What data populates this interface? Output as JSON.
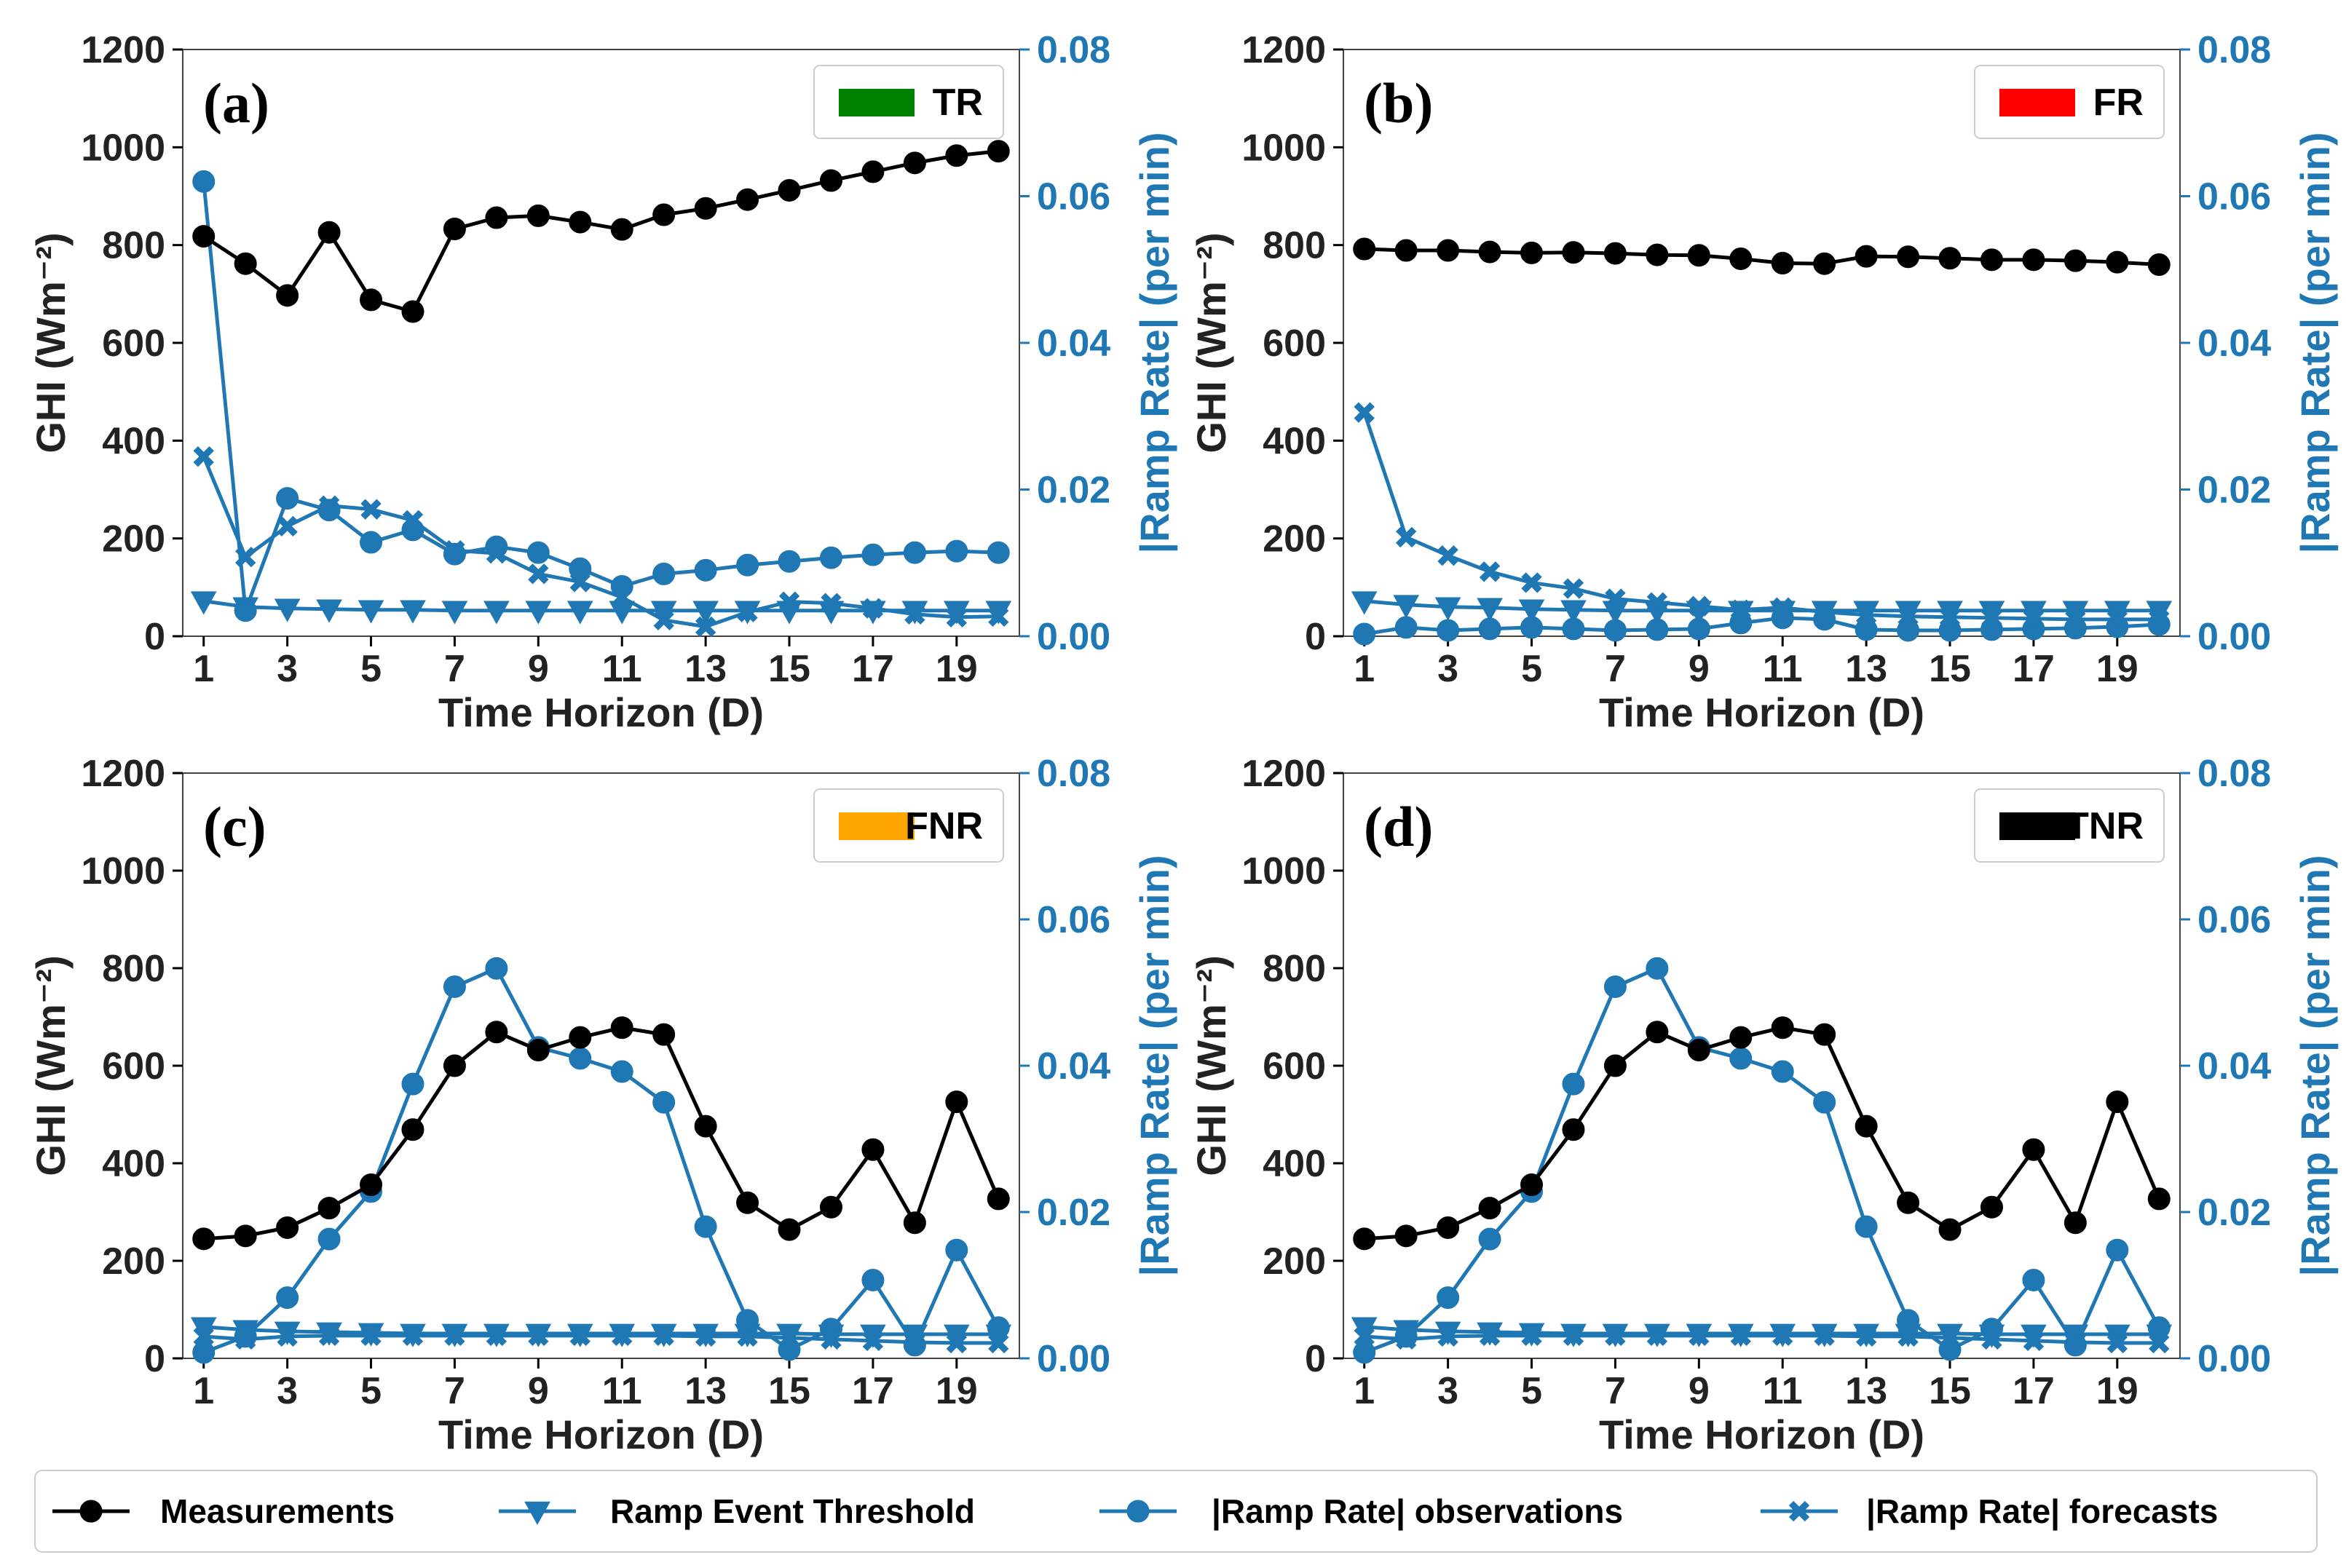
{
  "figure": {
    "legend": [
      {
        "label": "Measurements",
        "color": "#000000",
        "marker": "circle"
      },
      {
        "label": "Ramp Event Threshold",
        "color": "#1f77b4",
        "marker": "triangle-down"
      },
      {
        "label": "|Ramp Rate| observations",
        "color": "#1f77b4",
        "marker": "circle"
      },
      {
        "label": "|Ramp Rate| forecasts",
        "color": "#1f77b4",
        "marker": "x"
      }
    ]
  },
  "chart_data": [
    {
      "type": "line",
      "panel_label": "(a)",
      "category_label": "TR",
      "category_color": "#008000",
      "xlabel": "Time Horizon (D)",
      "ylabel": "GHI (Wm⁻²)",
      "y2label": "|Ramp Rate| (per min)",
      "xlim": [
        0.5,
        20.5
      ],
      "ylim": [
        0,
        1200
      ],
      "y2lim": [
        0,
        0.08
      ],
      "xticks": [
        1,
        3,
        5,
        7,
        9,
        11,
        13,
        15,
        17,
        19
      ],
      "yticks": [
        0,
        200,
        400,
        600,
        800,
        1000,
        1200
      ],
      "y2ticks": [
        "0.00",
        "0.02",
        "0.04",
        "0.06",
        "0.08"
      ],
      "x": [
        1,
        2,
        3,
        4,
        5,
        6,
        7,
        8,
        9,
        10,
        11,
        12,
        13,
        14,
        15,
        16,
        17,
        18,
        19,
        20
      ],
      "series": [
        {
          "name": "Measurements",
          "axis": "left",
          "values": [
            818,
            762,
            697,
            826,
            688,
            664,
            833,
            856,
            860,
            847,
            832,
            862,
            875,
            893,
            912,
            932,
            950,
            968,
            983,
            992
          ]
        },
        {
          "name": "Ramp Event Threshold",
          "axis": "right",
          "values": [
            0.0048,
            0.004,
            0.0038,
            0.0037,
            0.0036,
            0.0036,
            0.0035,
            0.0035,
            0.0035,
            0.0035,
            0.0035,
            0.0035,
            0.0035,
            0.0035,
            0.0035,
            0.0035,
            0.0035,
            0.0035,
            0.0035,
            0.0035
          ]
        },
        {
          "name": "|Ramp Rate| observations",
          "axis": "right",
          "values": [
            0.062,
            0.0035,
            0.0188,
            0.0172,
            0.0128,
            0.0145,
            0.0112,
            0.0122,
            0.0114,
            0.0092,
            0.0068,
            0.0085,
            0.009,
            0.0097,
            0.0102,
            0.0107,
            0.0111,
            0.0114,
            0.0116,
            0.0114
          ]
        },
        {
          "name": "|Ramp Rate| forecasts",
          "axis": "right",
          "values": [
            0.0245,
            0.0108,
            0.015,
            0.0178,
            0.0173,
            0.0158,
            0.0117,
            0.0113,
            0.0085,
            0.0074,
            0.0053,
            0.0022,
            0.0013,
            0.0033,
            0.0047,
            0.0045,
            0.0038,
            0.003,
            0.0026,
            0.0027
          ]
        }
      ]
    },
    {
      "type": "line",
      "panel_label": "(b)",
      "category_label": "FR",
      "category_color": "#ff0000",
      "xlabel": "Time Horizon (D)",
      "ylabel": "GHI (Wm⁻²)",
      "y2label": "|Ramp Rate| (per min)",
      "xlim": [
        0.5,
        20.5
      ],
      "ylim": [
        0,
        1200
      ],
      "y2lim": [
        0,
        0.08
      ],
      "xticks": [
        1,
        3,
        5,
        7,
        9,
        11,
        13,
        15,
        17,
        19
      ],
      "yticks": [
        0,
        200,
        400,
        600,
        800,
        1000,
        1200
      ],
      "y2ticks": [
        "0.00",
        "0.02",
        "0.04",
        "0.06",
        "0.08"
      ],
      "x": [
        1,
        2,
        3,
        4,
        5,
        6,
        7,
        8,
        9,
        10,
        11,
        12,
        13,
        14,
        15,
        16,
        17,
        18,
        19,
        20
      ],
      "series": [
        {
          "name": "Measurements",
          "axis": "left",
          "values": [
            792,
            789,
            789,
            786,
            784,
            785,
            783,
            780,
            779,
            772,
            763,
            762,
            777,
            776,
            773,
            770,
            770,
            768,
            765,
            760
          ]
        },
        {
          "name": "Ramp Event Threshold",
          "axis": "right",
          "values": [
            0.0048,
            0.0043,
            0.004,
            0.0039,
            0.0037,
            0.0036,
            0.0035,
            0.0035,
            0.0035,
            0.0035,
            0.0035,
            0.0035,
            0.0035,
            0.0035,
            0.0035,
            0.0035,
            0.0035,
            0.0035,
            0.0035,
            0.0035
          ]
        },
        {
          "name": "|Ramp Rate| observations",
          "axis": "right",
          "values": [
            0.0003,
            0.0012,
            0.0008,
            0.001,
            0.0012,
            0.001,
            0.0008,
            0.0009,
            0.001,
            0.0018,
            0.0025,
            0.0023,
            0.0009,
            0.0008,
            0.0008,
            0.0009,
            0.001,
            0.0011,
            0.0013,
            0.0016
          ]
        },
        {
          "name": "|Ramp Rate| forecasts",
          "axis": "right",
          "values": [
            0.0305,
            0.0135,
            0.011,
            0.0088,
            0.0073,
            0.0065,
            0.0051,
            0.0046,
            0.0041,
            0.0036,
            0.0039,
            0.0033,
            0.0029,
            0.0027,
            0.0026,
            0.0025,
            0.0024,
            0.0023,
            0.0023,
            0.0023
          ]
        }
      ]
    },
    {
      "type": "line",
      "panel_label": "(c)",
      "category_label": "FNR",
      "category_color": "#ffa500",
      "xlabel": "Time Horizon (D)",
      "ylabel": "GHI (Wm⁻²)",
      "y2label": "|Ramp Rate| (per min)",
      "xlim": [
        0.5,
        20.5
      ],
      "ylim": [
        0,
        1200
      ],
      "y2lim": [
        0,
        0.08
      ],
      "xticks": [
        1,
        3,
        5,
        7,
        9,
        11,
        13,
        15,
        17,
        19
      ],
      "yticks": [
        0,
        200,
        400,
        600,
        800,
        1000,
        1200
      ],
      "y2ticks": [
        "0.00",
        "0.02",
        "0.04",
        "0.06",
        "0.08"
      ],
      "x": [
        1,
        2,
        3,
        4,
        5,
        6,
        7,
        8,
        9,
        10,
        11,
        12,
        13,
        14,
        15,
        16,
        17,
        18,
        19,
        20
      ],
      "series": [
        {
          "name": "Measurements",
          "axis": "left",
          "values": [
            245,
            251,
            268,
            308,
            356,
            469,
            600,
            669,
            632,
            658,
            678,
            664,
            476,
            319,
            264,
            310,
            428,
            278,
            526,
            327
          ]
        },
        {
          "name": "Ramp Event Threshold",
          "axis": "right",
          "values": [
            0.0043,
            0.0039,
            0.0037,
            0.0036,
            0.0035,
            0.0034,
            0.0034,
            0.0034,
            0.0034,
            0.0034,
            0.0034,
            0.0034,
            0.0034,
            0.0034,
            0.0034,
            0.0033,
            0.0033,
            0.0033,
            0.0033,
            0.0033
          ]
        },
        {
          "name": "|Ramp Rate| observations",
          "axis": "right",
          "values": [
            0.0008,
            0.003,
            0.0083,
            0.0163,
            0.0228,
            0.0375,
            0.0508,
            0.0533,
            0.0425,
            0.041,
            0.0392,
            0.035,
            0.018,
            0.0052,
            0.0012,
            0.004,
            0.0107,
            0.0018,
            0.0148,
            0.0042
          ]
        },
        {
          "name": "|Ramp Rate| forecasts",
          "axis": "right",
          "values": [
            0.003,
            0.0026,
            0.003,
            0.0031,
            0.0031,
            0.0031,
            0.0031,
            0.0031,
            0.0031,
            0.0031,
            0.0031,
            0.0031,
            0.003,
            0.003,
            0.0028,
            0.0026,
            0.0024,
            0.0022,
            0.0021,
            0.0021
          ]
        }
      ]
    },
    {
      "type": "line",
      "panel_label": "(d)",
      "category_label": "TNR",
      "category_color": "#000000",
      "xlabel": "Time Horizon (D)",
      "ylabel": "GHI (Wm⁻²)",
      "y2label": "|Ramp Rate| (per min)",
      "xlim": [
        0.5,
        20.5
      ],
      "ylim": [
        0,
        1200
      ],
      "y2lim": [
        0,
        0.08
      ],
      "xticks": [
        1,
        3,
        5,
        7,
        9,
        11,
        13,
        15,
        17,
        19
      ],
      "yticks": [
        0,
        200,
        400,
        600,
        800,
        1000,
        1200
      ],
      "y2ticks": [
        "0.00",
        "0.02",
        "0.04",
        "0.06",
        "0.08"
      ],
      "x": [
        1,
        2,
        3,
        4,
        5,
        6,
        7,
        8,
        9,
        10,
        11,
        12,
        13,
        14,
        15,
        16,
        17,
        18,
        19,
        20
      ],
      "series": [
        {
          "name": "Measurements",
          "axis": "left",
          "values": [
            245,
            251,
            268,
            308,
            356,
            469,
            600,
            669,
            632,
            658,
            678,
            664,
            476,
            319,
            264,
            310,
            428,
            278,
            526,
            327
          ]
        },
        {
          "name": "Ramp Event Threshold",
          "axis": "right",
          "values": [
            0.0043,
            0.0039,
            0.0037,
            0.0036,
            0.0035,
            0.0034,
            0.0034,
            0.0034,
            0.0034,
            0.0034,
            0.0034,
            0.0034,
            0.0034,
            0.0034,
            0.0034,
            0.0033,
            0.0033,
            0.0033,
            0.0033,
            0.0033
          ]
        },
        {
          "name": "|Ramp Rate| observations",
          "axis": "right",
          "values": [
            0.0008,
            0.003,
            0.0083,
            0.0163,
            0.0228,
            0.0375,
            0.0508,
            0.0533,
            0.0425,
            0.041,
            0.0392,
            0.035,
            0.018,
            0.0052,
            0.0012,
            0.004,
            0.0107,
            0.0018,
            0.0148,
            0.0042
          ]
        },
        {
          "name": "|Ramp Rate| forecasts",
          "axis": "right",
          "values": [
            0.003,
            0.0026,
            0.003,
            0.0031,
            0.0031,
            0.0031,
            0.0031,
            0.0031,
            0.0031,
            0.0031,
            0.0031,
            0.0031,
            0.003,
            0.003,
            0.0028,
            0.0026,
            0.0024,
            0.0022,
            0.0021,
            0.0021
          ]
        }
      ]
    }
  ]
}
